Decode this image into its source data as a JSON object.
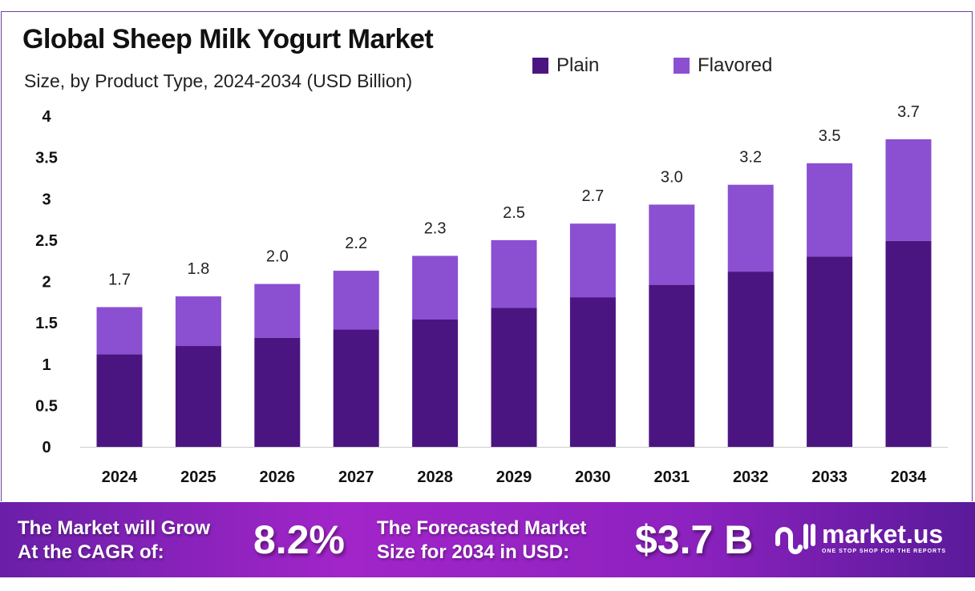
{
  "chart_data": {
    "type": "bar",
    "stacked": true,
    "title": "Global Sheep Milk Yogurt Market",
    "subtitle": "Size, by Product Type, 2024-2034 (USD Billion)",
    "xlabel": "",
    "ylabel": "",
    "ylim": [
      0,
      4
    ],
    "yticks": [
      "0",
      "0.5",
      "1",
      "1.5",
      "2",
      "2.5",
      "3",
      "3.5",
      "4"
    ],
    "grid": false,
    "legend_position": "top-right",
    "categories": [
      "2024",
      "2025",
      "2026",
      "2027",
      "2028",
      "2029",
      "2030",
      "2031",
      "2032",
      "2033",
      "2034"
    ],
    "series": [
      {
        "name": "Plain",
        "color": "#4b1581",
        "values": [
          1.12,
          1.22,
          1.32,
          1.42,
          1.54,
          1.68,
          1.81,
          1.96,
          2.12,
          2.3,
          2.49
        ]
      },
      {
        "name": "Flavored",
        "color": "#8b4fd1",
        "values": [
          0.57,
          0.6,
          0.65,
          0.71,
          0.77,
          0.82,
          0.89,
          0.97,
          1.05,
          1.13,
          1.23
        ]
      }
    ],
    "total_labels": [
      "1.7",
      "1.8",
      "2.0",
      "2.2",
      "2.3",
      "2.5",
      "2.7",
      "3.0",
      "3.2",
      "3.5",
      "3.7"
    ]
  },
  "footer": {
    "cagr_label_line1": "The Market will Grow",
    "cagr_label_line2": "At the CAGR of:",
    "cagr_value": "8.2%",
    "forecast_label_line1": "The Forecasted Market",
    "forecast_label_line2": "Size for 2034 in USD:",
    "forecast_value": "$3.7 B",
    "brand_name": "market.us",
    "brand_tagline": "ONE STOP SHOP FOR THE REPORTS"
  }
}
